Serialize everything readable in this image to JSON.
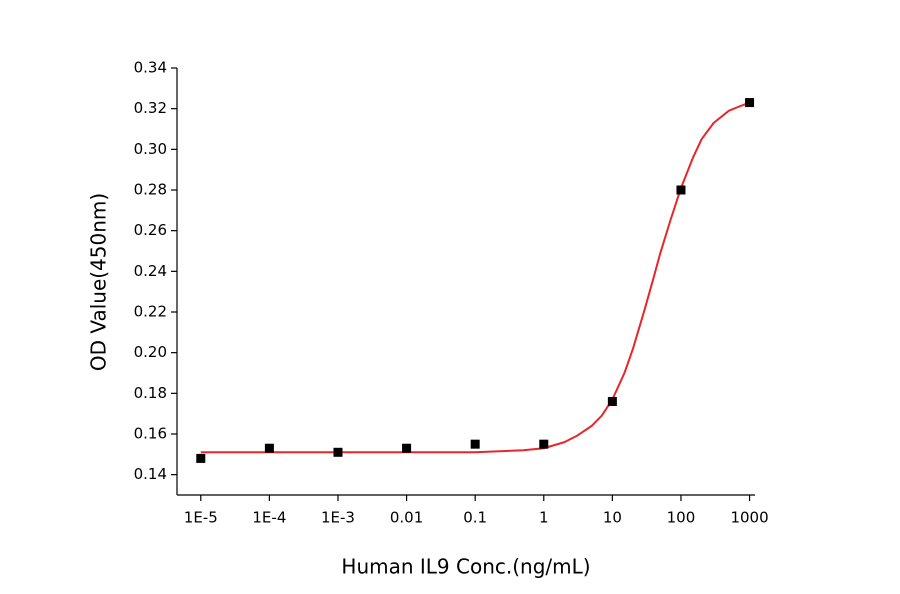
{
  "chart_data": {
    "type": "scatter",
    "x_label": "Human IL9 Conc.(ng/mL)",
    "y_label": "OD Value(450nm)",
    "x_scale": "log",
    "xlim": [
      4.5e-06,
      1200
    ],
    "xticks": [
      {
        "value": 1e-05,
        "label": "1E-5"
      },
      {
        "value": 0.0001,
        "label": "1E-4"
      },
      {
        "value": 0.001,
        "label": "1E-3"
      },
      0.01,
      0.1,
      1,
      10,
      100,
      1000
    ],
    "ylim": [
      0.13,
      0.34
    ],
    "yticks": [
      0.14,
      0.16,
      0.18,
      {
        "value": 0.2,
        "label": "0.20"
      },
      0.22,
      0.24,
      0.26,
      0.28,
      {
        "value": 0.3,
        "label": "0.30"
      },
      0.32,
      0.34
    ],
    "series": [
      {
        "kind": "points",
        "color": "#000000",
        "x": [
          1e-05,
          0.0001,
          0.001,
          0.01,
          0.1,
          1,
          10,
          100,
          1000
        ],
        "values": [
          0.148,
          0.153,
          0.151,
          0.153,
          0.155,
          0.155,
          0.176,
          0.28,
          0.323
        ]
      },
      {
        "kind": "fit",
        "color": "#e8262a",
        "x": [
          1e-05,
          0.0001,
          0.001,
          0.01,
          0.1,
          0.5,
          1,
          2,
          3,
          5,
          7,
          10,
          15,
          20,
          30,
          40,
          50,
          70,
          100,
          150,
          200,
          300,
          500,
          700,
          1000
        ],
        "values": [
          0.151,
          0.151,
          0.151,
          0.151,
          0.151,
          0.152,
          0.153,
          0.156,
          0.159,
          0.164,
          0.169,
          0.177,
          0.19,
          0.202,
          0.222,
          0.237,
          0.249,
          0.265,
          0.281,
          0.296,
          0.305,
          0.313,
          0.319,
          0.321,
          0.323
        ]
      }
    ]
  }
}
